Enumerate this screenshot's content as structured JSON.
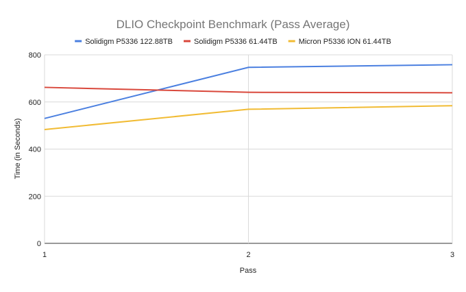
{
  "chart_data": {
    "type": "line",
    "title": "DLIO Checkpoint Benchmark (Pass Average)",
    "xlabel": "Pass",
    "ylabel": "Time (in Seconds)",
    "x": [
      1,
      2,
      3
    ],
    "x_tick_labels": [
      "1",
      "2",
      "3"
    ],
    "ylim": [
      0,
      800
    ],
    "y_ticks": [
      0,
      200,
      400,
      600,
      800
    ],
    "y_tick_labels": [
      "0",
      "200",
      "400",
      "600",
      "800"
    ],
    "grid": true,
    "legend_position": "top",
    "series": [
      {
        "name": "Solidigm P5336 122.88TB",
        "color": "#4a7fe0",
        "values": [
          530,
          747,
          758
        ]
      },
      {
        "name": "Solidigm P5336 61.44TB",
        "color": "#d9473b",
        "values": [
          662,
          641,
          639
        ]
      },
      {
        "name": "Micron P5336 ION 61.44TB",
        "color": "#f1bb33",
        "values": [
          483,
          569,
          584
        ]
      }
    ]
  }
}
